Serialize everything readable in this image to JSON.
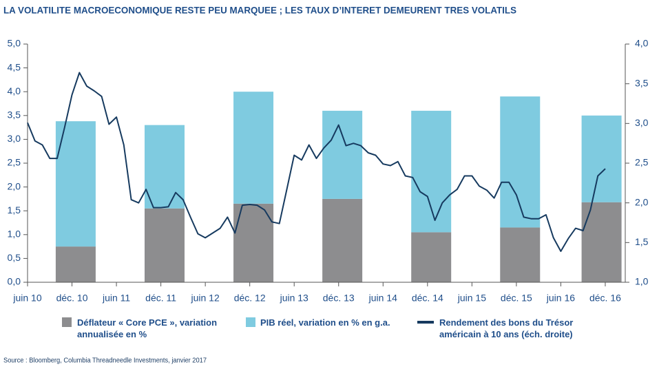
{
  "chart_data": {
    "type": "combo",
    "title": "LA VOLATILITE MACROECONOMIQUE RESTE PEU MARQUEE ; LES TAUX D’INTERET DEMEURENT TRES VOLATILS",
    "source": "Source : Bloomberg, Columbia Threadneedle Investments, janvier 2017",
    "stacked": true,
    "xlim": [
      0,
      80.7
    ],
    "xticks": [
      {
        "value": 0,
        "label": "juin 10"
      },
      {
        "value": 6,
        "label": "déc. 10"
      },
      {
        "value": 12,
        "label": "juin 11"
      },
      {
        "value": 18,
        "label": "déc. 11"
      },
      {
        "value": 24,
        "label": "juin 12"
      },
      {
        "value": 30,
        "label": "déc. 12"
      },
      {
        "value": 36,
        "label": "juin 13"
      },
      {
        "value": 42,
        "label": "déc. 13"
      },
      {
        "value": 48,
        "label": "juin 14"
      },
      {
        "value": 54,
        "label": "déc. 14"
      },
      {
        "value": 60,
        "label": "juin 15"
      },
      {
        "value": 66,
        "label": "déc. 15"
      },
      {
        "value": 72,
        "label": "juin 16"
      },
      {
        "value": 78,
        "label": "déc. 16"
      }
    ],
    "ylim": [
      0,
      5
    ],
    "yticks": [
      {
        "value": 0,
        "label": "0,0"
      },
      {
        "value": 0.5,
        "label": "0,5"
      },
      {
        "value": 1,
        "label": "1,0"
      },
      {
        "value": 1.5,
        "label": "1,5"
      },
      {
        "value": 2,
        "label": "2,0"
      },
      {
        "value": 2.5,
        "label": "2,5"
      },
      {
        "value": 3,
        "label": "3,0"
      },
      {
        "value": 3.5,
        "label": "3,5"
      },
      {
        "value": 4,
        "label": "4,0"
      },
      {
        "value": 4.5,
        "label": "4,5"
      },
      {
        "value": 5,
        "label": "5,0"
      }
    ],
    "y2lim": [
      1,
      4
    ],
    "y2ticks": [
      {
        "value": 1,
        "label": "1,0"
      },
      {
        "value": 1.5,
        "label": "1,5"
      },
      {
        "value": 2,
        "label": "2,0"
      },
      {
        "value": 2.5,
        "label": "2,5"
      },
      {
        "value": 3,
        "label": "3,0"
      },
      {
        "value": 3.5,
        "label": "3,5"
      },
      {
        "value": 4,
        "label": "4,0"
      }
    ],
    "series": [
      {
        "name": "Déflateur « Core PCE », variation annualisée en %",
        "color": "#8d8d8f",
        "type": "bar",
        "x": [
          6.5,
          18.5,
          30.5,
          42.5,
          54.5,
          66.5,
          77.5
        ],
        "values": [
          0.75,
          1.55,
          1.65,
          1.75,
          1.05,
          1.15,
          1.68
        ]
      },
      {
        "name": "PIB réel, variation en % en g.a.",
        "color": "#7fcbe0",
        "type": "bar",
        "x": [
          6.5,
          18.5,
          30.5,
          42.5,
          54.5,
          66.5,
          77.5
        ],
        "values": [
          2.63,
          1.75,
          2.35,
          1.85,
          2.55,
          2.75,
          1.82
        ]
      },
      {
        "name": "Rendement des bons du Trésor américain à 10 ans (éch. droite)",
        "color": "#163a5f",
        "type": "line",
        "axis": "y2",
        "x": [
          0,
          1,
          2,
          3,
          4,
          5,
          6,
          7,
          8,
          9,
          10,
          11,
          12,
          13,
          14,
          15,
          16,
          17,
          18,
          19,
          20,
          21,
          22,
          23,
          24,
          25,
          26,
          27,
          28,
          29,
          30,
          31,
          32,
          33,
          34,
          35,
          36,
          37,
          38,
          39,
          40,
          41,
          42,
          43,
          44,
          45,
          46,
          47,
          48,
          49,
          50,
          51,
          52,
          53,
          54,
          55,
          56,
          57,
          58,
          59,
          60,
          61,
          62,
          63,
          64,
          65,
          66,
          67,
          68,
          69,
          70,
          71,
          72,
          73,
          74,
          75,
          76,
          77,
          78
        ],
        "values": [
          3.01,
          2.78,
          2.73,
          2.56,
          2.56,
          2.95,
          3.36,
          3.64,
          3.47,
          3.41,
          3.34,
          2.99,
          3.08,
          2.73,
          2.04,
          2.0,
          2.17,
          1.94,
          1.94,
          1.95,
          2.13,
          2.04,
          1.82,
          1.61,
          1.56,
          1.62,
          1.68,
          1.82,
          1.62,
          1.97,
          1.98,
          1.97,
          1.91,
          1.76,
          1.74,
          2.17,
          2.6,
          2.54,
          2.73,
          2.56,
          2.69,
          2.79,
          2.98,
          2.72,
          2.75,
          2.72,
          2.63,
          2.6,
          2.49,
          2.47,
          2.52,
          2.34,
          2.32,
          2.14,
          2.08,
          1.78,
          2.0,
          2.1,
          2.17,
          2.34,
          2.34,
          2.21,
          2.16,
          2.06,
          2.26,
          2.26,
          2.1,
          1.82,
          1.8,
          1.8,
          1.85,
          1.56,
          1.39,
          1.55,
          1.68,
          1.65,
          1.91,
          2.34,
          2.43
        ]
      }
    ]
  }
}
